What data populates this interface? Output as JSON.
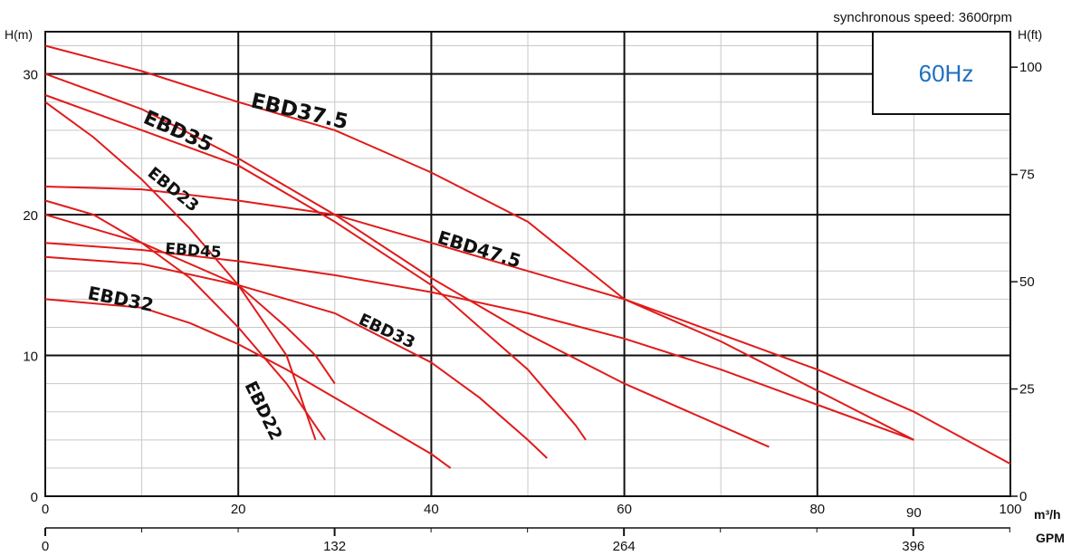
{
  "chart_data": {
    "type": "line",
    "subtitle": "synchronous speed: 3600rpm",
    "frequency_badge": "60Hz",
    "frequency_color": "#1f6fc0",
    "curve_color": "#e01b1b",
    "label_segment_color": "#7a1010",
    "grid": true,
    "y_left": {
      "label": "H(m)",
      "range": [
        0,
        33
      ],
      "ticks": [
        "0",
        "10",
        "20",
        "30"
      ]
    },
    "y_right": {
      "label": "H(ft)",
      "ticks": [
        "0",
        "25",
        "50",
        "75",
        "100"
      ]
    },
    "x_m3h": {
      "label": "m³/h",
      "range": [
        0,
        100
      ],
      "ticks": [
        "0",
        "20",
        "40",
        "60",
        "80",
        "90",
        "100"
      ]
    },
    "x_gpm": {
      "label": "GPM",
      "ticks": [
        "0",
        "132",
        "264",
        "396"
      ]
    },
    "series": [
      {
        "name": "EBD37.5",
        "x": [
          0,
          10,
          20,
          30,
          40,
          50,
          60,
          70,
          80,
          90,
          100
        ],
        "y": [
          32,
          30.2,
          28,
          26,
          23,
          19.5,
          14,
          11.5,
          9,
          6,
          2.3
        ]
      },
      {
        "name": "EBD35",
        "x": [
          0,
          10,
          20,
          30,
          40,
          50,
          60,
          70,
          75
        ],
        "y": [
          30,
          27.5,
          24,
          20,
          15.5,
          11.5,
          8,
          5,
          3.5
        ]
      },
      {
        "name": "EBD47.5",
        "x": [
          0,
          10,
          20,
          30,
          40,
          50,
          60,
          70,
          80,
          90
        ],
        "y": [
          22,
          21.8,
          21,
          20,
          18,
          16,
          14,
          11,
          7.5,
          4
        ]
      },
      {
        "name": "EBD23",
        "x": [
          0,
          5,
          10,
          15,
          20,
          25,
          28
        ],
        "y": [
          28,
          25.5,
          22.5,
          19,
          15,
          10,
          4
        ]
      },
      {
        "name": "EBD45",
        "x": [
          0,
          10,
          20,
          30,
          40,
          50,
          60,
          70,
          80,
          90
        ],
        "y": [
          18,
          17.5,
          16.7,
          15.7,
          14.5,
          13,
          11.2,
          9,
          6.5,
          4
        ]
      },
      {
        "name": "EBD33",
        "x": [
          0,
          10,
          20,
          30,
          40,
          45,
          50,
          52
        ],
        "y": [
          17,
          16.5,
          15,
          13,
          9.5,
          7,
          4,
          2.7
        ]
      },
      {
        "name": "EBD32",
        "x": [
          0,
          10,
          15,
          20,
          25,
          30,
          35,
          40,
          42
        ],
        "y": [
          14,
          13.4,
          12.3,
          10.8,
          9,
          7,
          5,
          3,
          2
        ]
      },
      {
        "name": "EBD22",
        "x": [
          0,
          5,
          10,
          15,
          20,
          25,
          29
        ],
        "y": [
          21,
          20,
          18,
          15.5,
          12,
          8,
          4
        ]
      },
      {
        "name": "",
        "x": [
          0,
          10,
          20,
          25,
          28,
          30
        ],
        "y": [
          20,
          18,
          15,
          12,
          10,
          8
        ]
      },
      {
        "name": "",
        "x": [
          0,
          10,
          20,
          30,
          40,
          50,
          55,
          56
        ],
        "y": [
          28.5,
          26,
          23.5,
          19.5,
          15,
          9,
          5,
          4
        ]
      }
    ]
  }
}
